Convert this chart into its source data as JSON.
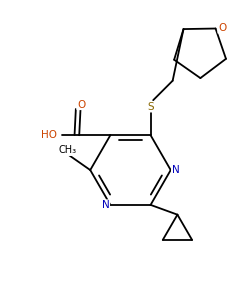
{
  "bg_color": "#ffffff",
  "line_color": "#000000",
  "atom_colors": {
    "O": "#cc4400",
    "N": "#0000bb",
    "S": "#886600"
  },
  "figsize": [
    2.35,
    2.83
  ],
  "dpi": 100
}
